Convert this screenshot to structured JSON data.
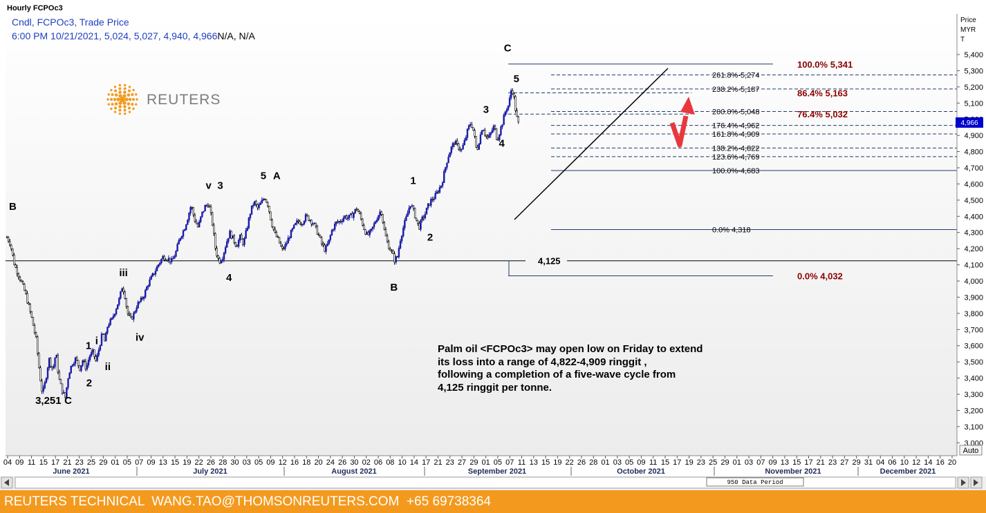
{
  "window_title": "Hourly FCPOc3",
  "legend": {
    "line1": "Cndl, FCPOc3, Trade Price",
    "line2_values": "6:00 PM 10/21/2021, 5,024, 5,027, 4,940, 4,966",
    "line2_na": "N/A, N/A"
  },
  "logo_text": "REUTERS",
  "axis_title": [
    "Price",
    "MYR",
    "T"
  ],
  "current_price_marker": "4,966",
  "auto_button": "Auto",
  "data_period": "950 Data Period",
  "annotation": [
    "Palm oil <FCPOc3> may open low on Friday to extend",
    "its loss into  a range of 4,822-4,909 ringgit ,",
    "following a completion of a five-wave cycle from",
    "4,125 ringgit per tonne."
  ],
  "footer_text": "REUTERS TECHNICAL  WANG.TAO@THOMSONREUTERS.COM  +65 69738364",
  "colors": {
    "footer": "#f39a1e",
    "candle_up": "#1a1aa6",
    "fib_red": "#8b0000",
    "arrow": "#e8383d",
    "legend_blue": "#1f3fbf",
    "highlight": "#0000cc"
  },
  "chart_data": {
    "type": "candlestick",
    "instrument": "FCPOc3",
    "interval": "Hourly",
    "ylim": [
      2920,
      5480
    ],
    "y_ticks": [
      3000,
      3100,
      3200,
      3300,
      3400,
      3500,
      3600,
      3700,
      3800,
      3900,
      4000,
      4100,
      4200,
      4300,
      4400,
      4500,
      4600,
      4700,
      4800,
      4900,
      5000,
      5100,
      5200,
      5300,
      5400
    ],
    "y_tick_labels": [
      "3,000",
      "3,100",
      "3,200",
      "3,300",
      "3,400",
      "3,500",
      "3,600",
      "3,700",
      "3,800",
      "3,900",
      "4,000",
      "4,100",
      "4,200",
      "4,300",
      "4,400",
      "4,500",
      "4,600",
      "4,700",
      "4,800",
      "4,900",
      "5,000",
      "5,100",
      "5,200",
      "5,300",
      "5,400"
    ],
    "x_tick_labels": [
      "04",
      "09",
      "11",
      "15",
      "17",
      "21",
      "23",
      "25",
      "29",
      "01",
      "05",
      "07",
      "09",
      "13",
      "15",
      "19",
      "22",
      "26",
      "28",
      "30",
      "03",
      "05",
      "09",
      "12",
      "16",
      "18",
      "20",
      "24",
      "26",
      "30",
      "02",
      "06",
      "08",
      "10",
      "14",
      "17",
      "21",
      "23",
      "27",
      "29",
      "01",
      "05",
      "07",
      "11",
      "13",
      "15",
      "19",
      "22",
      "26",
      "28",
      "01",
      "03",
      "05",
      "09",
      "11",
      "15",
      "17",
      "19",
      "23",
      "25",
      "29",
      "01",
      "03",
      "07",
      "09",
      "13",
      "15",
      "17",
      "21",
      "23",
      "27",
      "29",
      "31",
      "04",
      "06",
      "10",
      "12",
      "14",
      "16",
      "20"
    ],
    "months": [
      "June 2021",
      "July 2021",
      "August 2021",
      "September 2021",
      "October 2021",
      "November 2021",
      "December 2021"
    ],
    "price_path": [
      [
        0,
        4270
      ],
      [
        0.6,
        4230
      ],
      [
        1.3,
        4100
      ],
      [
        2.2,
        4020
      ],
      [
        3.2,
        3920
      ],
      [
        4.2,
        3780
      ],
      [
        5.0,
        3640
      ],
      [
        5.6,
        3430
      ],
      [
        6.1,
        3300
      ],
      [
        6.6,
        3380
      ],
      [
        7.2,
        3520
      ],
      [
        7.9,
        3450
      ],
      [
        8.4,
        3560
      ],
      [
        8.9,
        3400
      ],
      [
        9.5,
        3320
      ],
      [
        10.0,
        3280
      ],
      [
        10.6,
        3430
      ],
      [
        11.2,
        3490
      ],
      [
        11.8,
        3520
      ],
      [
        12.5,
        3460
      ],
      [
        13.0,
        3510
      ],
      [
        13.6,
        3460
      ],
      [
        14.2,
        3540
      ],
      [
        14.8,
        3560
      ],
      [
        15.3,
        3500
      ],
      [
        15.9,
        3600
      ],
      [
        16.4,
        3680
      ],
      [
        16.8,
        3620
      ],
      [
        17.3,
        3730
      ],
      [
        18.0,
        3760
      ],
      [
        18.6,
        3820
      ],
      [
        19.3,
        3890
      ],
      [
        19.8,
        3970
      ],
      [
        20.2,
        3920
      ],
      [
        20.7,
        3800
      ],
      [
        21.2,
        3760
      ],
      [
        21.7,
        3790
      ],
      [
        22.3,
        3850
      ],
      [
        23.0,
        3880
      ],
      [
        23.6,
        3920
      ],
      [
        24.2,
        3980
      ],
      [
        24.8,
        4020
      ],
      [
        25.4,
        4060
      ],
      [
        26.1,
        4110
      ],
      [
        26.8,
        4150
      ],
      [
        27.6,
        4140
      ],
      [
        28.3,
        4120
      ],
      [
        29.0,
        4180
      ],
      [
        29.7,
        4270
      ],
      [
        30.4,
        4320
      ],
      [
        31.0,
        4390
      ],
      [
        31.6,
        4470
      ],
      [
        32.2,
        4380
      ],
      [
        32.8,
        4330
      ],
      [
        33.4,
        4410
      ],
      [
        34.0,
        4460
      ],
      [
        34.6,
        4480
      ],
      [
        35.2,
        4370
      ],
      [
        35.8,
        4190
      ],
      [
        36.4,
        4120
      ],
      [
        37.0,
        4150
      ],
      [
        37.6,
        4230
      ],
      [
        38.2,
        4300
      ],
      [
        38.8,
        4260
      ],
      [
        39.4,
        4220
      ],
      [
        40.0,
        4270
      ],
      [
        40.6,
        4230
      ],
      [
        41.2,
        4330
      ],
      [
        41.8,
        4430
      ],
      [
        42.4,
        4490
      ],
      [
        43.0,
        4450
      ],
      [
        43.6,
        4480
      ],
      [
        44.2,
        4520
      ],
      [
        44.8,
        4470
      ],
      [
        45.4,
        4360
      ],
      [
        46.0,
        4290
      ],
      [
        46.6,
        4250
      ],
      [
        47.2,
        4190
      ],
      [
        47.8,
        4220
      ],
      [
        48.5,
        4280
      ],
      [
        49.2,
        4330
      ],
      [
        49.9,
        4370
      ],
      [
        50.6,
        4360
      ],
      [
        51.3,
        4400
      ],
      [
        52.0,
        4380
      ],
      [
        52.7,
        4350
      ],
      [
        53.4,
        4290
      ],
      [
        54.0,
        4230
      ],
      [
        54.6,
        4190
      ],
      [
        55.2,
        4240
      ],
      [
        55.8,
        4320
      ],
      [
        56.5,
        4360
      ],
      [
        57.2,
        4370
      ],
      [
        57.9,
        4400
      ],
      [
        58.6,
        4390
      ],
      [
        59.3,
        4410
      ],
      [
        60.0,
        4450
      ],
      [
        60.6,
        4400
      ],
      [
        61.2,
        4330
      ],
      [
        61.8,
        4280
      ],
      [
        62.4,
        4300
      ],
      [
        63.0,
        4350
      ],
      [
        63.6,
        4400
      ],
      [
        64.2,
        4440
      ],
      [
        64.8,
        4300
      ],
      [
        65.4,
        4220
      ],
      [
        66.0,
        4180
      ],
      [
        66.5,
        4130
      ],
      [
        67.0,
        4150
      ],
      [
        67.5,
        4260
      ],
      [
        68.0,
        4330
      ],
      [
        68.6,
        4400
      ],
      [
        69.2,
        4480
      ],
      [
        69.7,
        4440
      ],
      [
        70.2,
        4380
      ],
      [
        70.7,
        4330
      ],
      [
        71.2,
        4380
      ],
      [
        71.7,
        4410
      ],
      [
        72.2,
        4460
      ],
      [
        72.8,
        4500
      ],
      [
        73.4,
        4520
      ],
      [
        74.0,
        4560
      ],
      [
        74.6,
        4600
      ],
      [
        75.1,
        4680
      ],
      [
        75.6,
        4760
      ],
      [
        76.2,
        4820
      ],
      [
        76.8,
        4860
      ],
      [
        77.4,
        4830
      ],
      [
        78.0,
        4810
      ],
      [
        78.6,
        4870
      ],
      [
        79.1,
        4940
      ],
      [
        79.6,
        4980
      ],
      [
        80.1,
        4920
      ],
      [
        80.6,
        4800
      ],
      [
        81.1,
        4880
      ],
      [
        81.6,
        4960
      ],
      [
        82.1,
        4900
      ],
      [
        82.6,
        4880
      ],
      [
        83.1,
        4920
      ],
      [
        83.6,
        4960
      ],
      [
        84.1,
        4870
      ],
      [
        84.6,
        4930
      ],
      [
        85.1,
        4990
      ],
      [
        85.6,
        5060
      ],
      [
        86.1,
        5090
      ],
      [
        86.6,
        5200
      ],
      [
        87.0,
        5130
      ],
      [
        87.4,
        5020
      ],
      [
        87.8,
        4966
      ]
    ],
    "fibonacci_levels": [
      {
        "label": "261.8%",
        "value": 5274,
        "text": "5,274"
      },
      {
        "label": "238.2%",
        "value": 5187,
        "text": "5,187"
      },
      {
        "label": "200.0%",
        "value": 5048,
        "text": "5,048"
      },
      {
        "label": "176.4%",
        "value": 4962,
        "text": "4,962"
      },
      {
        "label": "161.8%",
        "value": 4909,
        "text": "4,909"
      },
      {
        "label": "138.2%",
        "value": 4822,
        "text": "4,822"
      },
      {
        "label": "123.6%",
        "value": 4769,
        "text": "4,769"
      },
      {
        "label": "100.0%",
        "value": 4683,
        "text": "4,683"
      },
      {
        "label": "0.0%",
        "value": 4318,
        "text": "4,318"
      }
    ],
    "fibonacci_red_levels": [
      {
        "label": "100.0%",
        "value": 5341,
        "text": "5,341"
      },
      {
        "label": "86.4%",
        "value": 5163,
        "text": "5,163"
      },
      {
        "label": "76.4%",
        "value": 5032,
        "text": "5,032"
      },
      {
        "label": "0.0%",
        "value": 4032,
        "text": "4,032"
      }
    ],
    "support_line": {
      "value": 4125,
      "text": "4,125"
    },
    "wave_labels": [
      {
        "text": "B",
        "x": 1.0,
        "y": 4440
      },
      {
        "text": "iii",
        "x": 20.0,
        "y": 4030
      },
      {
        "text": "iv",
        "x": 22.8,
        "y": 3630
      },
      {
        "text": "1",
        "x": 14.0,
        "y": 3580
      },
      {
        "text": "i",
        "x": 15.4,
        "y": 3610
      },
      {
        "text": "ii",
        "x": 17.3,
        "y": 3450
      },
      {
        "text": "2",
        "x": 14.1,
        "y": 3350
      },
      {
        "text": "3,251",
        "x": 7.1,
        "y": 3240
      },
      {
        "text": "C",
        "x": 10.5,
        "y": 3240
      },
      {
        "text": "v",
        "x": 34.6,
        "y": 4570
      },
      {
        "text": "3",
        "x": 36.6,
        "y": 4570
      },
      {
        "text": "4",
        "x": 38.1,
        "y": 4000
      },
      {
        "text": "5",
        "x": 44.0,
        "y": 4630
      },
      {
        "text": "A",
        "x": 46.3,
        "y": 4630
      },
      {
        "text": "1",
        "x": 69.7,
        "y": 4600
      },
      {
        "text": "2",
        "x": 72.6,
        "y": 4250
      },
      {
        "text": "B",
        "x": 66.4,
        "y": 3940
      },
      {
        "text": "3",
        "x": 82.2,
        "y": 5040
      },
      {
        "text": "4",
        "x": 84.9,
        "y": 4830
      },
      {
        "text": "5",
        "x": 87.4,
        "y": 5230
      },
      {
        "text": "C",
        "x": 85.9,
        "y": 5420
      }
    ]
  }
}
